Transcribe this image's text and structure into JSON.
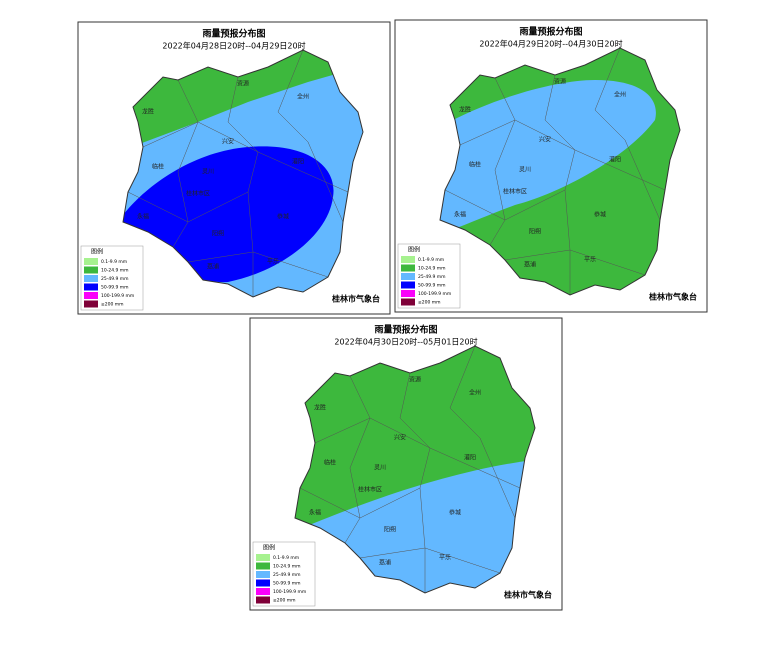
{
  "maps": [
    {
      "title": "雨量预报分布图",
      "subtitle": "2022年04月28日20时--04月29日20时",
      "labels": [
        "资源",
        "全州",
        "龙胜",
        "兴安",
        "灌阳",
        "临桂",
        "灵川",
        "桂林市区",
        "永福",
        "阳朔",
        "恭城",
        "荔浦",
        "平乐"
      ],
      "legend_title": "图例",
      "legend": [
        "0.1-9.9 mm",
        "10-24.9 mm",
        "25-49.9 mm",
        "50-99.9 mm",
        "100-199.9 mm",
        "≥200 mm"
      ],
      "footer": "桂林市气象台"
    },
    {
      "title": "雨量预报分布图",
      "subtitle": "2022年04月29日20时--04月30日20时",
      "labels": [
        "资源",
        "全州",
        "龙胜",
        "兴安",
        "灌阳",
        "临桂",
        "灵川",
        "桂林市区",
        "永福",
        "阳朔",
        "恭城",
        "荔浦",
        "平乐"
      ],
      "legend_title": "图例",
      "legend": [
        "0.1-9.9 mm",
        "10-24.9 mm",
        "25-49.9 mm",
        "50-99.9 mm",
        "100-199.9 mm",
        "≥200 mm"
      ],
      "footer": "桂林市气象台"
    },
    {
      "title": "雨量预报分布图",
      "subtitle": "2022年04月30日20时--05月01日20时",
      "labels": [
        "资源",
        "全州",
        "龙胜",
        "兴安",
        "灌阳",
        "临桂",
        "灵川",
        "桂林市区",
        "永福",
        "阳朔",
        "恭城",
        "荔浦",
        "平乐"
      ],
      "legend_title": "图例",
      "legend": [
        "0.1-9.9 mm",
        "10-24.9 mm",
        "25-49.9 mm",
        "50-99.9 mm",
        "100-199.9 mm",
        "≥200 mm"
      ],
      "footer": "桂林市气象台"
    }
  ],
  "legend_colors": [
    "#a6f28f",
    "#3db83d",
    "#63b8ff",
    "#0000fe",
    "#fa00fa",
    "#7f0038"
  ]
}
